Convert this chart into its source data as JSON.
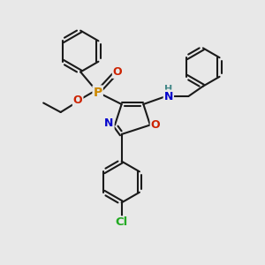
{
  "bg_color": "#e8e8e8",
  "bond_color": "#1a1a1a",
  "atom_colors": {
    "P": "#cc8800",
    "O": "#cc2200",
    "N": "#0000cc",
    "Cl": "#22aa22",
    "H": "#448888"
  },
  "line_width": 1.5,
  "figsize": [
    3.0,
    3.0
  ],
  "dpi": 100,
  "xlim": [
    0,
    10
  ],
  "ylim": [
    0,
    10
  ]
}
